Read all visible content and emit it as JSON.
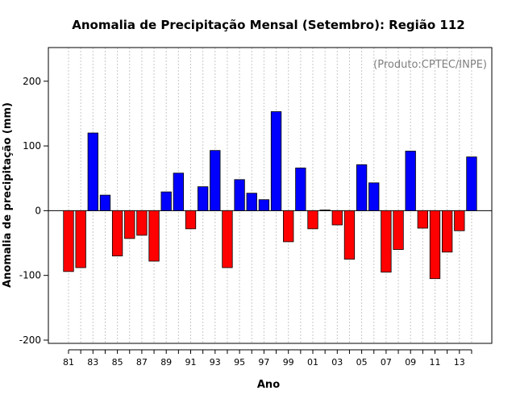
{
  "chart_data": {
    "type": "bar",
    "title": "Anomalia de Precipitação Mensal (Setembro): Região 112",
    "xlabel": "Ano",
    "ylabel": "Anomalia de precipitação (mm)",
    "annotation": "(Produto:CPTEC/INPE)",
    "ylim": [
      -205,
      252
    ],
    "yticks": [
      -200,
      -100,
      0,
      100,
      200
    ],
    "categories": [
      "81",
      "82",
      "83",
      "84",
      "85",
      "86",
      "87",
      "88",
      "89",
      "90",
      "91",
      "92",
      "93",
      "94",
      "95",
      "96",
      "97",
      "98",
      "99",
      "00",
      "01",
      "02",
      "03",
      "04",
      "05",
      "06",
      "07",
      "08",
      "09",
      "10",
      "11",
      "12",
      "13",
      "14"
    ],
    "values": [
      -94,
      -88,
      120,
      24,
      -70,
      -43,
      -38,
      -78,
      29,
      58,
      -28,
      37,
      93,
      -88,
      48,
      27,
      17,
      153,
      -48,
      66,
      -28,
      1,
      -22,
      -75,
      71,
      43,
      -95,
      -60,
      92,
      -27,
      -105,
      -64,
      -31,
      83
    ],
    "xtick_labels": [
      "81",
      "83",
      "85",
      "87",
      "89",
      "91",
      "93",
      "95",
      "97",
      "99",
      "01",
      "03",
      "05",
      "07",
      "09",
      "11",
      "13"
    ],
    "colors": {
      "positive": "#0000ff",
      "negative": "#ff0000",
      "grid": "#c8c8c8",
      "annotation": "#7f7f7f"
    },
    "grid": true
  }
}
